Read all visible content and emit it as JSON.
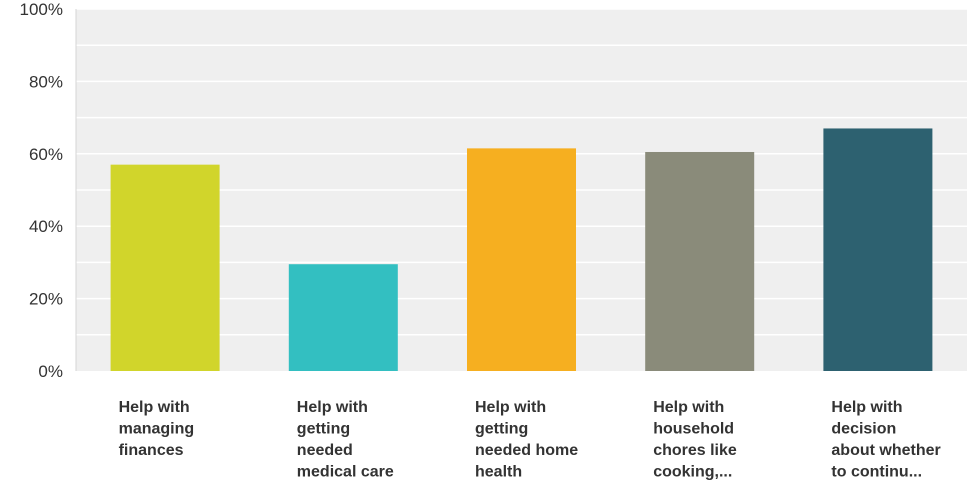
{
  "chart_data": {
    "type": "bar",
    "categories": [
      [
        "Help with",
        "managing",
        "finances"
      ],
      [
        "Help with",
        "getting",
        "needed",
        "medical care"
      ],
      [
        "Help with",
        "getting",
        "needed home",
        "health"
      ],
      [
        "Help with",
        "household",
        "chores like",
        "cooking,..."
      ],
      [
        "Help with",
        "decision",
        "about whether",
        "to continu..."
      ]
    ],
    "values": [
      57,
      29.5,
      61.5,
      60.5,
      67
    ],
    "colors": [
      "#d1d52b",
      "#33bfc1",
      "#f6af20",
      "#8a8b7a",
      "#2d6170"
    ],
    "ylim": [
      0,
      100
    ],
    "yticks": [
      "0%",
      "20%",
      "40%",
      "60%",
      "80%",
      "100%"
    ],
    "ytick_values": [
      0,
      20,
      40,
      60,
      80,
      100
    ],
    "grid": true,
    "background": "#efefef",
    "title": "",
    "xlabel": "",
    "ylabel": ""
  }
}
